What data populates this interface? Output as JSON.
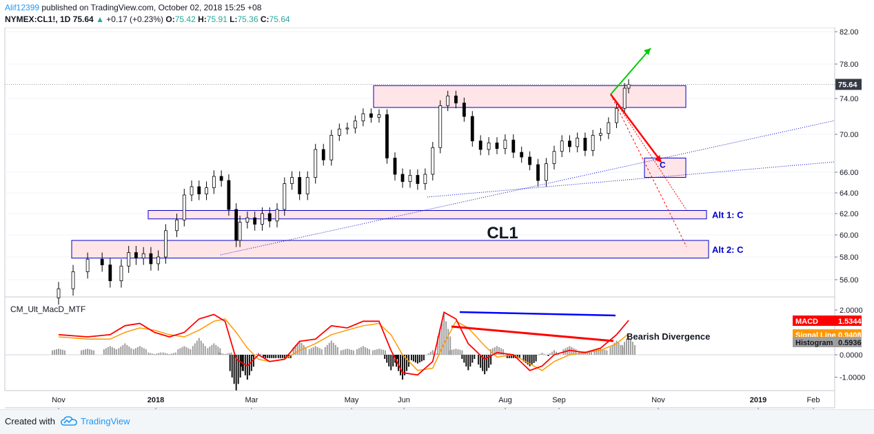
{
  "header": {
    "user": "Alif12399",
    "published": " published on TradingView.com, October 02, 2018 15:25 +08",
    "symbol": "NYMEX:CL1!, 1D",
    "last": "75.64",
    "change_arrow": "▲",
    "change": "+0.17 (+0.23%)",
    "o_label": "O:",
    "o": "75.42",
    "h_label": "H:",
    "h": "75.91",
    "l_label": "L:",
    "l": "75.36",
    "c_label": "C:",
    "c": "75.64"
  },
  "footer": {
    "created_with": "Created with",
    "brand": "TradingView"
  },
  "chart_data": [
    {
      "type": "candlestick",
      "symbol": "NYMEX:CL1!",
      "interval": "1D",
      "watermark": "CL1",
      "y_ticks": [
        56.0,
        58.0,
        60.0,
        62.0,
        64.0,
        66.0,
        70.0,
        74.0,
        78.0,
        82.0
      ],
      "y_tick_labels": [
        "56.00",
        "58.00",
        "60.00",
        "62.00",
        "64.00",
        "66.00",
        "70.00",
        "74.00",
        "78.00",
        "82.00"
      ],
      "x_tick_labels": [
        "Nov",
        "2018",
        "Mar",
        "May",
        "Jun",
        "Aug",
        "Sep",
        "Nov",
        "2019",
        "Feb"
      ],
      "last_price": 75.64,
      "last_price_label": "75.64",
      "close_series": [
        [
          2017.79,
          55.2
        ],
        [
          2017.81,
          56.7
        ],
        [
          2017.83,
          57.8
        ],
        [
          2017.85,
          57.3
        ],
        [
          2017.87,
          55.9
        ],
        [
          2017.9,
          57.2
        ],
        [
          2017.92,
          58.4
        ],
        [
          2017.94,
          57.9
        ],
        [
          2017.96,
          58.3
        ],
        [
          2017.98,
          57.4
        ],
        [
          2018.0,
          58.0
        ],
        [
          2018.02,
          60.4
        ],
        [
          2018.05,
          61.4
        ],
        [
          2018.07,
          63.8
        ],
        [
          2018.09,
          64.6
        ],
        [
          2018.11,
          63.9
        ],
        [
          2018.13,
          64.5
        ],
        [
          2018.15,
          65.6
        ],
        [
          2018.17,
          65.2
        ],
        [
          2018.19,
          62.4
        ],
        [
          2018.21,
          59.5
        ],
        [
          2018.22,
          61.2
        ],
        [
          2018.24,
          61.6
        ],
        [
          2018.26,
          61.0
        ],
        [
          2018.28,
          62.0
        ],
        [
          2018.3,
          61.3
        ],
        [
          2018.32,
          62.4
        ],
        [
          2018.34,
          64.9
        ],
        [
          2018.36,
          65.5
        ],
        [
          2018.38,
          63.9
        ],
        [
          2018.4,
          65.5
        ],
        [
          2018.42,
          68.4
        ],
        [
          2018.44,
          67.3
        ],
        [
          2018.46,
          69.9
        ],
        [
          2018.48,
          70.6
        ],
        [
          2018.5,
          70.7
        ],
        [
          2018.52,
          71.5
        ],
        [
          2018.54,
          72.3
        ],
        [
          2018.56,
          71.9
        ],
        [
          2018.58,
          72.2
        ],
        [
          2018.6,
          67.5
        ],
        [
          2018.62,
          65.8
        ],
        [
          2018.64,
          65.1
        ],
        [
          2018.66,
          65.7
        ],
        [
          2018.68,
          64.9
        ],
        [
          2018.7,
          65.8
        ],
        [
          2018.72,
          68.6
        ],
        [
          2018.74,
          73.2
        ],
        [
          2018.76,
          74.3
        ],
        [
          2018.78,
          73.5
        ],
        [
          2018.8,
          72.0
        ],
        [
          2018.82,
          69.3
        ],
        [
          2018.84,
          68.4
        ],
        [
          2018.86,
          69.1
        ],
        [
          2018.88,
          68.5
        ],
        [
          2018.9,
          69.4
        ],
        [
          2018.92,
          68.1
        ],
        [
          2018.94,
          67.6
        ],
        [
          2018.96,
          66.8
        ],
        [
          2018.98,
          65.2
        ],
        [
          2019.0,
          66.9
        ],
        [
          2019.02,
          68.2
        ],
        [
          2019.04,
          69.3
        ],
        [
          2019.06,
          68.7
        ],
        [
          2019.08,
          69.6
        ],
        [
          2019.1,
          68.3
        ],
        [
          2019.12,
          69.9
        ],
        [
          2019.14,
          70.1
        ],
        [
          2019.16,
          71.3
        ],
        [
          2019.18,
          72.9
        ],
        [
          2019.2,
          75.2
        ],
        [
          2019.21,
          75.64
        ]
      ],
      "zones": [
        {
          "low": 73.0,
          "high": 75.5,
          "label": ""
        },
        {
          "low": 65.5,
          "high": 67.5,
          "label": "C"
        },
        {
          "low": 61.5,
          "high": 62.3,
          "label": "Alt 1: C"
        },
        {
          "low": 57.9,
          "high": 59.5,
          "label": "Alt 2: C"
        }
      ],
      "annotations": [
        "C",
        "Alt 1: C",
        "Alt 2: C",
        "CL1"
      ],
      "colors": {
        "up": "#26a69a",
        "zone_fill": "#ffe4e8",
        "zone_stroke": "#0000cc",
        "bull_arrow": "#00cc00",
        "bear_arrow": "#ff0000"
      }
    },
    {
      "type": "line",
      "title": "CM_Ult_MacD_MTF",
      "y_ticks": [
        2.0,
        0.0,
        -1.0
      ],
      "y_tick_labels": [
        "2.0000",
        "0.0000",
        "-1.0000"
      ],
      "series": [
        {
          "name": "MACD",
          "last": 1.5344,
          "last_label": "1.5344",
          "color": "#ff0000"
        },
        {
          "name": "Signal Line",
          "last": 0.9408,
          "last_label": "0.9408",
          "color": "#ff9800"
        },
        {
          "name": "Histogram",
          "last": 0.5936,
          "last_label": "0.5936",
          "color": "#999999"
        }
      ],
      "macd": [
        [
          2017.79,
          0.9
        ],
        [
          2017.83,
          0.8
        ],
        [
          2017.87,
          0.9
        ],
        [
          2017.91,
          1.3
        ],
        [
          2017.95,
          1.4
        ],
        [
          2017.99,
          1.0
        ],
        [
          2018.03,
          0.8
        ],
        [
          2018.07,
          1.0
        ],
        [
          2018.11,
          1.6
        ],
        [
          2018.15,
          1.8
        ],
        [
          2018.18,
          1.5
        ],
        [
          2018.21,
          -0.2
        ],
        [
          2018.24,
          -0.5
        ],
        [
          2018.27,
          0.0
        ],
        [
          2018.3,
          -0.3
        ],
        [
          2018.34,
          -0.2
        ],
        [
          2018.38,
          0.6
        ],
        [
          2018.42,
          0.7
        ],
        [
          2018.46,
          1.3
        ],
        [
          2018.5,
          1.2
        ],
        [
          2018.54,
          1.5
        ],
        [
          2018.58,
          1.5
        ],
        [
          2018.61,
          0.2
        ],
        [
          2018.64,
          -0.8
        ],
        [
          2018.68,
          -0.9
        ],
        [
          2018.72,
          -0.3
        ],
        [
          2018.75,
          1.9
        ],
        [
          2018.78,
          1.6
        ],
        [
          2018.81,
          0.5
        ],
        [
          2018.85,
          -0.2
        ],
        [
          2018.88,
          0.1
        ],
        [
          2018.92,
          0.0
        ],
        [
          2018.96,
          -0.7
        ],
        [
          2018.99,
          -0.5
        ],
        [
          2019.02,
          0.0
        ],
        [
          2019.06,
          0.2
        ],
        [
          2019.1,
          0.1
        ],
        [
          2019.14,
          0.3
        ],
        [
          2019.18,
          0.9
        ],
        [
          2019.21,
          1.5344
        ]
      ],
      "signal": [
        [
          2017.79,
          0.8
        ],
        [
          2017.83,
          0.7
        ],
        [
          2017.87,
          0.7
        ],
        [
          2017.91,
          1.0
        ],
        [
          2017.95,
          1.2
        ],
        [
          2017.99,
          1.1
        ],
        [
          2018.03,
          0.9
        ],
        [
          2018.07,
          0.8
        ],
        [
          2018.11,
          1.1
        ],
        [
          2018.15,
          1.5
        ],
        [
          2018.18,
          1.6
        ],
        [
          2018.21,
          1.0
        ],
        [
          2018.24,
          0.3
        ],
        [
          2018.27,
          -0.2
        ],
        [
          2018.3,
          -0.3
        ],
        [
          2018.34,
          -0.2
        ],
        [
          2018.38,
          0.2
        ],
        [
          2018.42,
          0.5
        ],
        [
          2018.46,
          0.9
        ],
        [
          2018.5,
          1.1
        ],
        [
          2018.54,
          1.3
        ],
        [
          2018.58,
          1.4
        ],
        [
          2018.61,
          0.9
        ],
        [
          2018.64,
          0.0
        ],
        [
          2018.68,
          -0.7
        ],
        [
          2018.72,
          -0.6
        ],
        [
          2018.75,
          0.5
        ],
        [
          2018.78,
          1.5
        ],
        [
          2018.81,
          1.2
        ],
        [
          2018.85,
          0.4
        ],
        [
          2018.88,
          -0.1
        ],
        [
          2018.92,
          0.0
        ],
        [
          2018.96,
          -0.4
        ],
        [
          2018.99,
          -0.7
        ],
        [
          2019.02,
          -0.3
        ],
        [
          2019.06,
          0.0
        ],
        [
          2019.1,
          0.1
        ],
        [
          2019.14,
          0.2
        ],
        [
          2019.18,
          0.5
        ],
        [
          2019.21,
          0.9408
        ]
      ],
      "divergence_label": "Bearish Divergence"
    }
  ]
}
